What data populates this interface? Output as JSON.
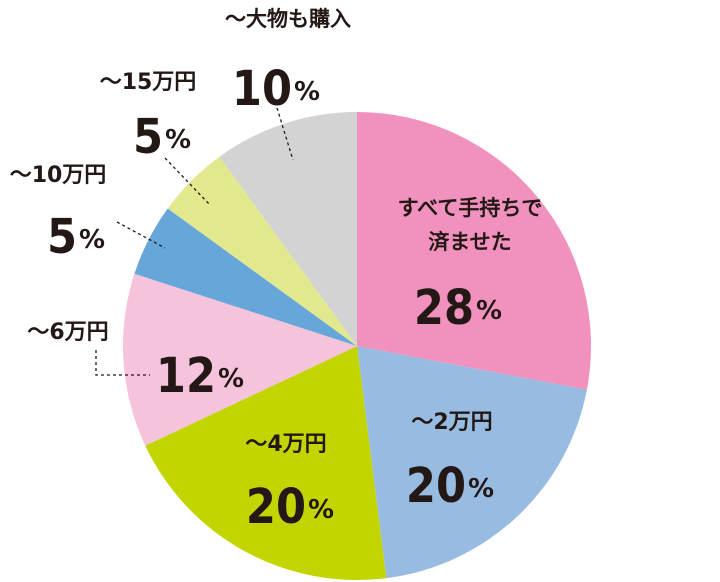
{
  "chart_data": {
    "type": "pie",
    "start": "12 o'clock",
    "direction": "clockwise",
    "slices": [
      {
        "label_lines": [
          "すべて手持ちで",
          "済ませた"
        ],
        "value": 28,
        "unit": "%",
        "color": "#f092bd"
      },
      {
        "label_lines": [
          "～2万円"
        ],
        "value": 20,
        "unit": "%",
        "color": "#98bce1"
      },
      {
        "label_lines": [
          "～4万円"
        ],
        "value": 20,
        "unit": "%",
        "color": "#c3d500"
      },
      {
        "label_lines": [
          "～6万円"
        ],
        "value": 12,
        "unit": "%",
        "color": "#f5c4dc"
      },
      {
        "label_lines": [
          "～10万円"
        ],
        "value": 5,
        "unit": "%",
        "color": "#66a6d9"
      },
      {
        "label_lines": [
          "～15万円"
        ],
        "value": 5,
        "unit": "%",
        "color": "#e2e88e"
      },
      {
        "label_lines": [
          "～大物も購入"
        ],
        "value": 10,
        "unit": "%",
        "color": "#d3d3d4"
      }
    ]
  }
}
